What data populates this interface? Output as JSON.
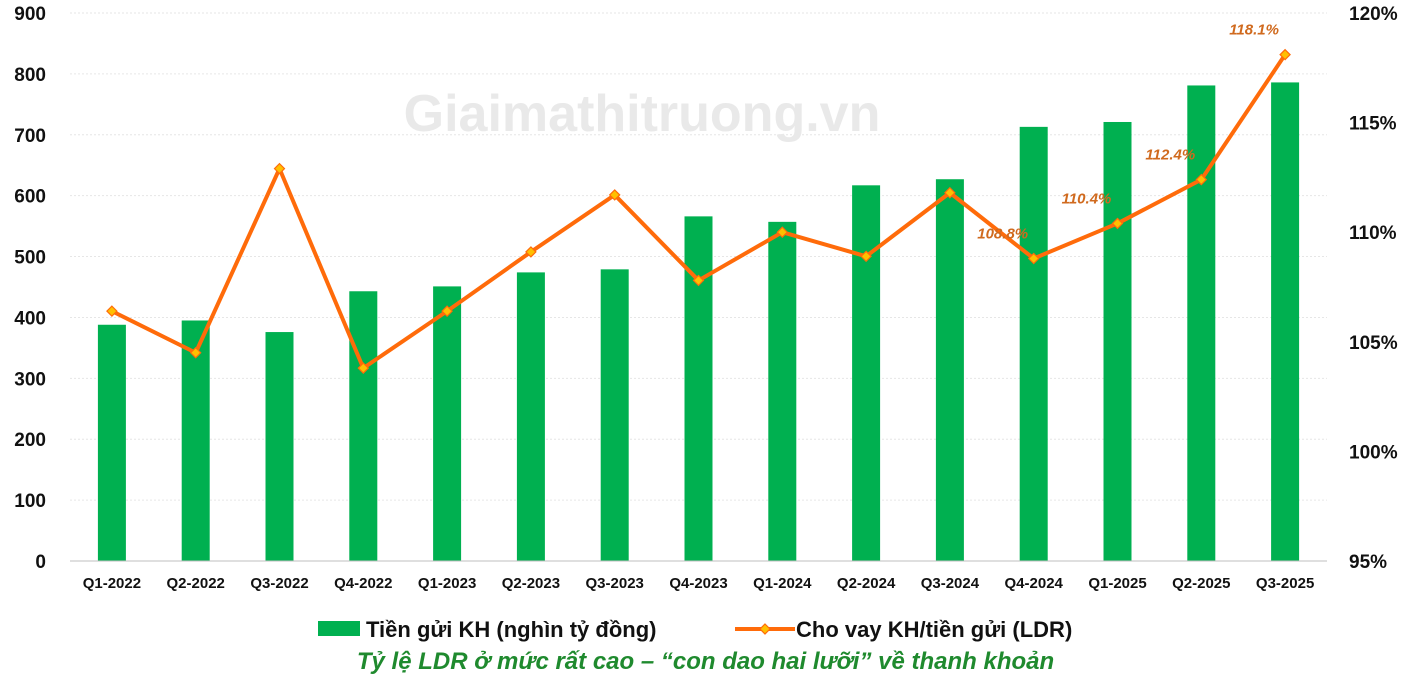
{
  "watermark": "Giaimathitruong.vn",
  "caption": "Tỷ lệ LDR ở mức rất cao – “con dao hai lưỡi” về thanh khoản",
  "colors": {
    "bar": "#00b050",
    "line": "#ff6b0a",
    "marker": "#ffc000",
    "label": "#d06a1e"
  },
  "chart_data": {
    "type": "bar",
    "categories": [
      "Q1-2022",
      "Q2-2022",
      "Q3-2022",
      "Q4-2022",
      "Q1-2023",
      "Q2-2023",
      "Q3-2023",
      "Q4-2023",
      "Q1-2024",
      "Q2-2024",
      "Q3-2024",
      "Q4-2024",
      "Q1-2025",
      "Q2-2025",
      "Q3-2025"
    ],
    "series": [
      {
        "name": "Tiền gửi KH (nghìn tỷ đồng)",
        "type": "bar",
        "axis": "left",
        "values": [
          388,
          395,
          376,
          443,
          451,
          474,
          479,
          566,
          557,
          617,
          627,
          713,
          721,
          781,
          786
        ]
      },
      {
        "name": "Cho vay KH/tiền gửi (LDR)",
        "type": "line",
        "axis": "right",
        "values": [
          106.4,
          104.5,
          112.9,
          103.8,
          106.4,
          109.1,
          111.7,
          107.8,
          110.0,
          108.9,
          111.8,
          108.8,
          110.4,
          112.4,
          118.1
        ]
      }
    ],
    "data_labels": [
      {
        "index": 11,
        "text": "108.8%"
      },
      {
        "index": 12,
        "text": "110.4%"
      },
      {
        "index": 13,
        "text": "112.4%"
      },
      {
        "index": 14,
        "text": "118.1%"
      }
    ],
    "y_left": {
      "min": 0,
      "max": 900,
      "step": 100,
      "ticks": [
        "0",
        "100",
        "200",
        "300",
        "400",
        "500",
        "600",
        "700",
        "800",
        "900"
      ]
    },
    "y_right": {
      "min": 95,
      "max": 120,
      "step": 5,
      "ticks": [
        "95%",
        "100%",
        "105%",
        "110%",
        "115%",
        "120%"
      ]
    },
    "grid": true,
    "legend": "bottom"
  }
}
